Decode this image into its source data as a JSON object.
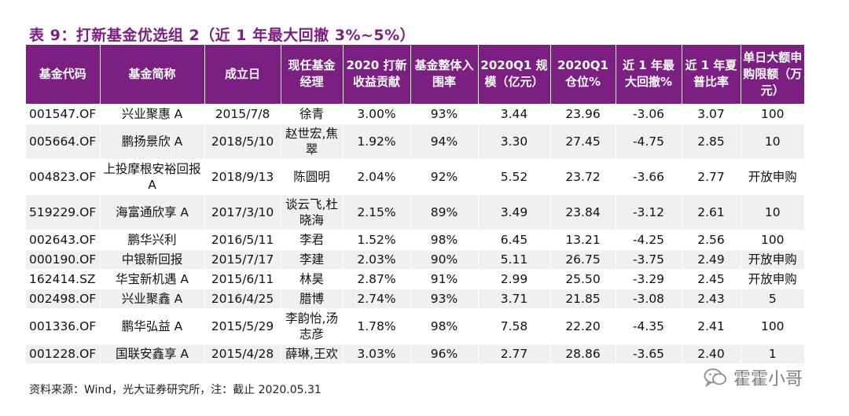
{
  "title": "表 9：打新基金优选组 2（近 1 年最大回撤 3%~5%）",
  "table": {
    "headers": [
      "基金代码",
      "基金简称",
      "成立日",
      "现任基金经理",
      "2020 打新收益贡献",
      "基金整体入围率",
      "2020Q1 规模（亿元）",
      "2020Q1 仓位%",
      "近 1 年最大回撤%",
      "近 1 年夏普比率",
      "单日大额申购限额（万元）"
    ],
    "rows": [
      [
        "001547.OF",
        "兴业聚惠 A",
        "2015/7/8",
        "徐青",
        "3.00%",
        "93%",
        "3.44",
        "23.96",
        "-3.06",
        "3.07",
        "100"
      ],
      [
        "005664.OF",
        "鹏扬景欣 A",
        "2018/5/10",
        "赵世宏,焦翠",
        "1.92%",
        "94%",
        "3.30",
        "27.45",
        "-4.75",
        "2.85",
        "10"
      ],
      [
        "004823.OF",
        "上投摩根安裕回报 A",
        "2018/9/13",
        "陈圆明",
        "2.04%",
        "92%",
        "5.52",
        "23.72",
        "-3.66",
        "2.77",
        "开放申购"
      ],
      [
        "519229.OF",
        "海富通欣享 A",
        "2017/3/10",
        "谈云飞,杜晓海",
        "2.15%",
        "89%",
        "3.49",
        "23.84",
        "-3.12",
        "2.61",
        "10"
      ],
      [
        "002643.OF",
        "鹏华兴利",
        "2016/5/11",
        "李君",
        "1.52%",
        "98%",
        "6.45",
        "13.21",
        "-4.25",
        "2.56",
        "100"
      ],
      [
        "000190.OF",
        "中银新回报",
        "2015/7/17",
        "李建",
        "2.03%",
        "90%",
        "5.11",
        "26.75",
        "-3.75",
        "2.49",
        "开放申购"
      ],
      [
        "162414.SZ",
        "华宝新机遇 A",
        "2015/6/11",
        "林昊",
        "2.87%",
        "91%",
        "2.99",
        "25.50",
        "-3.29",
        "2.45",
        "开放申购"
      ],
      [
        "002498.OF",
        "兴业聚鑫 A",
        "2016/4/25",
        "腊博",
        "2.74%",
        "93%",
        "3.71",
        "21.85",
        "-3.08",
        "2.43",
        "5"
      ],
      [
        "001336.OF",
        "鹏华弘益 A",
        "2015/5/29",
        "李韵怡,汤志彦",
        "1.78%",
        "98%",
        "7.58",
        "22.20",
        "-4.35",
        "2.41",
        "100"
      ],
      [
        "001228.OF",
        "国联安鑫享 A",
        "2015/4/28",
        "薛琳,王欢",
        "3.03%",
        "96%",
        "2.77",
        "28.86",
        "-3.65",
        "2.40",
        "1"
      ]
    ]
  },
  "source": "资料来源：Wind，光大证券研究所，注：截止 2020.05.31",
  "watermark": {
    "text": "霍霍小哥",
    "icon": "wechat-icon"
  },
  "colors": {
    "header_bg": "#7b1f82",
    "title": "#7b1f82",
    "stripe": "#f0eff1"
  }
}
